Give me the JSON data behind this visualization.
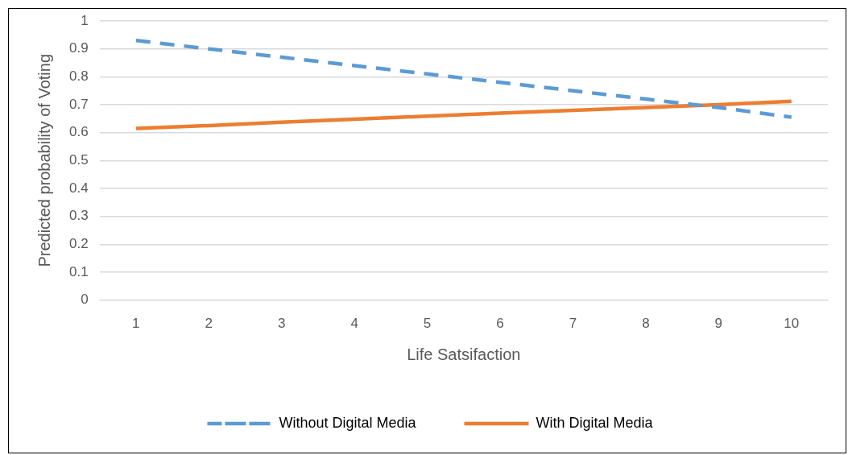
{
  "chart_data": {
    "type": "line",
    "xlabel": "Life Satsifaction",
    "ylabel": "Predicted probability of Voting",
    "categories": [
      "1",
      "2",
      "3",
      "4",
      "5",
      "6",
      "7",
      "8",
      "9",
      "10"
    ],
    "series": [
      {
        "name": "Without Digital Media",
        "color": "#5b9bd5",
        "line_style": "dashed",
        "values": [
          0.93,
          0.9,
          0.87,
          0.84,
          0.81,
          0.78,
          0.75,
          0.72,
          0.69,
          0.655
        ]
      },
      {
        "name": "With Digital Media",
        "color": "#ed7d31",
        "line_style": "solid",
        "values": [
          0.615,
          0.625,
          0.637,
          0.648,
          0.659,
          0.67,
          0.68,
          0.69,
          0.7,
          0.712
        ]
      }
    ],
    "ylim": [
      0,
      1
    ],
    "yticks": [
      0,
      0.1,
      0.2,
      0.3,
      0.4,
      0.5,
      0.6,
      0.7,
      0.8,
      0.9,
      1
    ],
    "grid": "y",
    "legend": "bottom",
    "marker": "none"
  }
}
